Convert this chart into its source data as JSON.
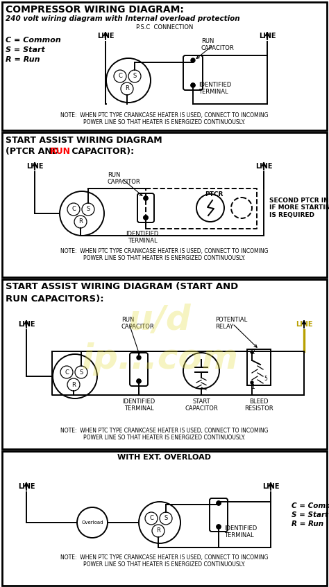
{
  "bg_color": "#ffffff",
  "s1_title": "COMPRESSOR WIRING DIAGRAM:",
  "s1_subtitle": "240 volt wiring diagram with Internal overload protection",
  "s1_psc": "P.S.C  CONNECTION",
  "s1_legend": [
    "C = Common",
    "S = Start",
    "R = Run"
  ],
  "s1_note": "NOTE:  WHEN PTC TYPE CRANKCASE HEATER IS USED, CONNECT TO INCOMING\nPOWER LINE SO THAT HEATER IS ENERGIZED CONTINUOUSLY.",
  "s2_title1": "START ASSIST WIRING DIAGRAM",
  "s2_title2": "(PTCR AND ",
  "s2_title2b": "RUN",
  "s2_title2c": " CAPACITOR):",
  "s2_note": "NOTE:  WHEN PTC TYPE CRANKCASE HEATER IS USED, CONNECT TO INCOMING\nPOWER LINE SO THAT HEATER IS ENERGIZED CONTINUOUSLY.",
  "s2_side": "SECOND PTCR IN PARALLEL\nIF MORE STARTING TORQUE\nIS REQUIRED",
  "s3_title1": "START ASSIST WIRING DIAGRAM (START AND",
  "s3_title2": "RUN CAPACITORS):",
  "s3_note": "NOTE:  WHEN PTC TYPE CRANKCASE HEATER IS USED, CONNECT TO INCOMING\nPOWER LINE SO THAT HEATER IS ENERGIZED CONTINUOUSLY.",
  "s4_title": "WITH EXT. OVERLOAD",
  "s4_legend": [
    "C = Common",
    "S = Start",
    "R = Run"
  ],
  "s4_note": "NOTE:  WHEN PTC TYPE CRANKCASE HEATER IS USED, CONNECT TO INCOMING\nPOWER LINE SO THAT HEATER IS ENERGIZED CONTINUOUSLY.",
  "watermark_color": "#e8e050"
}
